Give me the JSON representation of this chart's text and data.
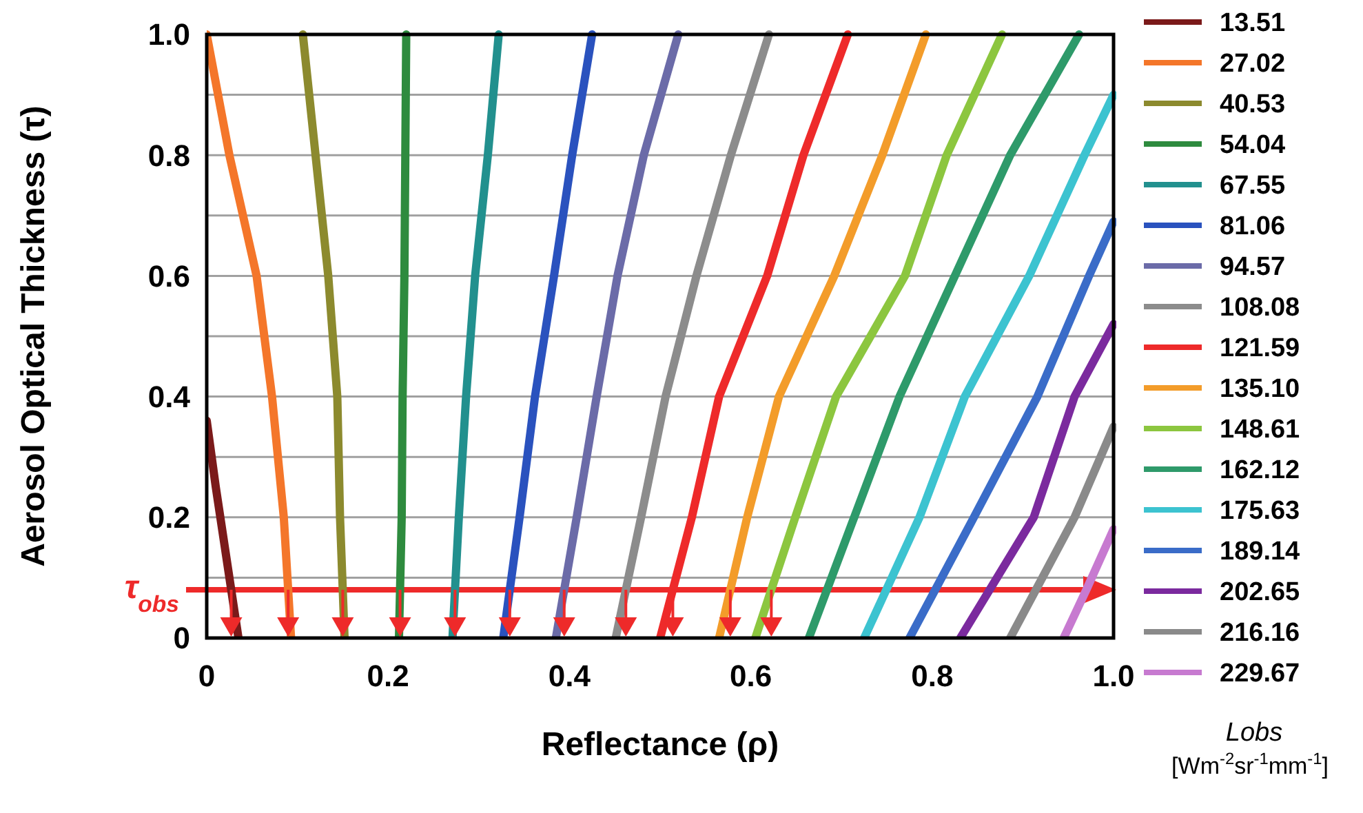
{
  "chart_data": {
    "type": "line",
    "xlabel": "Reflectance (ρ)",
    "ylabel": "Aerosol Optical Thickness (τ)",
    "legend_title": "Lobs [Wm$^{-2}$sr$^{-1}$mm$^{-1}$]",
    "legend": "right",
    "grid": "y",
    "xlim": [
      0,
      1
    ],
    "ylim": [
      0,
      1
    ],
    "xticks": [
      0,
      0.2,
      0.4,
      0.6,
      0.8,
      {
        "value": 1,
        "label": "1.0"
      }
    ],
    "yticks": [
      0,
      {
        "value": 0.1,
        "label": null
      },
      0.2,
      {
        "value": 0.3,
        "label": null
      },
      0.4,
      {
        "value": 0.5,
        "label": null
      },
      0.6,
      {
        "value": 0.7,
        "label": null
      },
      0.8,
      {
        "value": 0.9,
        "label": null
      },
      {
        "value": 1,
        "label": "1.0"
      }
    ],
    "ref_lines": [
      {
        "axis": "y",
        "value": 0.08,
        "label": "τ$_{obs}$",
        "color": "#ee2a2a"
      }
    ],
    "series": [
      {
        "name": "13.51",
        "color": "#7b1a1a",
        "x": [
          0,
          0.01,
          0.025,
          0.035
        ],
        "values": [
          0.36,
          0.25,
          0.1,
          0
        ]
      },
      {
        "name": "27.02",
        "color": "#f4762a",
        "x": [
          0,
          0.025,
          0.055,
          0.072,
          0.085,
          0.093
        ],
        "values": [
          1,
          0.8,
          0.6,
          0.4,
          0.2,
          0
        ]
      },
      {
        "name": "40.53",
        "color": "#8c8a2e",
        "x": [
          0.106,
          0.12,
          0.134,
          0.144,
          0.147,
          0.152
        ],
        "values": [
          1,
          0.8,
          0.6,
          0.4,
          0.2,
          0
        ]
      },
      {
        "name": "54.04",
        "color": "#2e8b3e",
        "x": [
          0.22,
          0.219,
          0.218,
          0.216,
          0.215,
          0.212
        ],
        "values": [
          1,
          0.8,
          0.6,
          0.4,
          0.2,
          0
        ]
      },
      {
        "name": "67.55",
        "color": "#22908e",
        "x": [
          0.322,
          0.31,
          0.296,
          0.286,
          0.278,
          0.271
        ],
        "values": [
          1,
          0.8,
          0.6,
          0.4,
          0.2,
          0
        ]
      },
      {
        "name": "81.06",
        "color": "#2a52be",
        "x": [
          0.425,
          0.403,
          0.383,
          0.362,
          0.345,
          0.327
        ],
        "values": [
          1,
          0.8,
          0.6,
          0.4,
          0.2,
          0
        ]
      },
      {
        "name": "94.57",
        "color": "#6b6ba8",
        "x": [
          0.52,
          0.482,
          0.453,
          0.43,
          0.408,
          0.385
        ],
        "values": [
          1,
          0.8,
          0.6,
          0.4,
          0.2,
          0
        ]
      },
      {
        "name": "108.08",
        "color": "#8c8c8c",
        "x": [
          0.62,
          0.578,
          0.54,
          0.506,
          0.479,
          0.451
        ],
        "values": [
          1,
          0.8,
          0.6,
          0.4,
          0.2,
          0
        ]
      },
      {
        "name": "121.59",
        "color": "#ee2a2a",
        "x": [
          0.707,
          0.658,
          0.618,
          0.565,
          0.535,
          0.5
        ],
        "values": [
          1,
          0.8,
          0.6,
          0.4,
          0.2,
          0
        ]
      },
      {
        "name": "135.10",
        "color": "#f39c2a",
        "x": [
          0.793,
          0.745,
          0.692,
          0.631,
          0.596,
          0.565
        ],
        "values": [
          1,
          0.8,
          0.6,
          0.4,
          0.2,
          0
        ]
      },
      {
        "name": "148.61",
        "color": "#8cc63f",
        "x": [
          0.877,
          0.816,
          0.77,
          0.694,
          0.649,
          0.605
        ],
        "values": [
          1,
          0.8,
          0.6,
          0.4,
          0.2,
          0
        ]
      },
      {
        "name": "162.12",
        "color": "#2e9a6a",
        "x": [
          0.962,
          0.886,
          0.825,
          0.764,
          0.714,
          0.664
        ],
        "values": [
          1,
          0.8,
          0.6,
          0.4,
          0.2,
          0
        ]
      },
      {
        "name": "175.63",
        "color": "#3cc3d0",
        "x": [
          1,
          0.968,
          0.907,
          0.836,
          0.786,
          0.725
        ],
        "values": [
          0.9,
          0.8,
          0.6,
          0.4,
          0.2,
          0
        ]
      },
      {
        "name": "189.14",
        "color": "#3a6cc8",
        "x": [
          1,
          0.973,
          0.916,
          0.846,
          0.775
        ],
        "values": [
          0.69,
          0.6,
          0.4,
          0.2,
          0
        ]
      },
      {
        "name": "202.65",
        "color": "#7b2a9e",
        "x": [
          1,
          0.957,
          0.912,
          0.831
        ],
        "values": [
          0.52,
          0.4,
          0.2,
          0
        ]
      },
      {
        "name": "216.16",
        "color": "#8a8a8a",
        "x": [
          1,
          0.957,
          0.886
        ],
        "values": [
          0.35,
          0.2,
          0
        ]
      },
      {
        "name": "229.67",
        "color": "#c77ad0",
        "x": [
          1,
          0.97,
          0.945
        ],
        "values": [
          0.18,
          0.08,
          0
        ]
      }
    ]
  }
}
